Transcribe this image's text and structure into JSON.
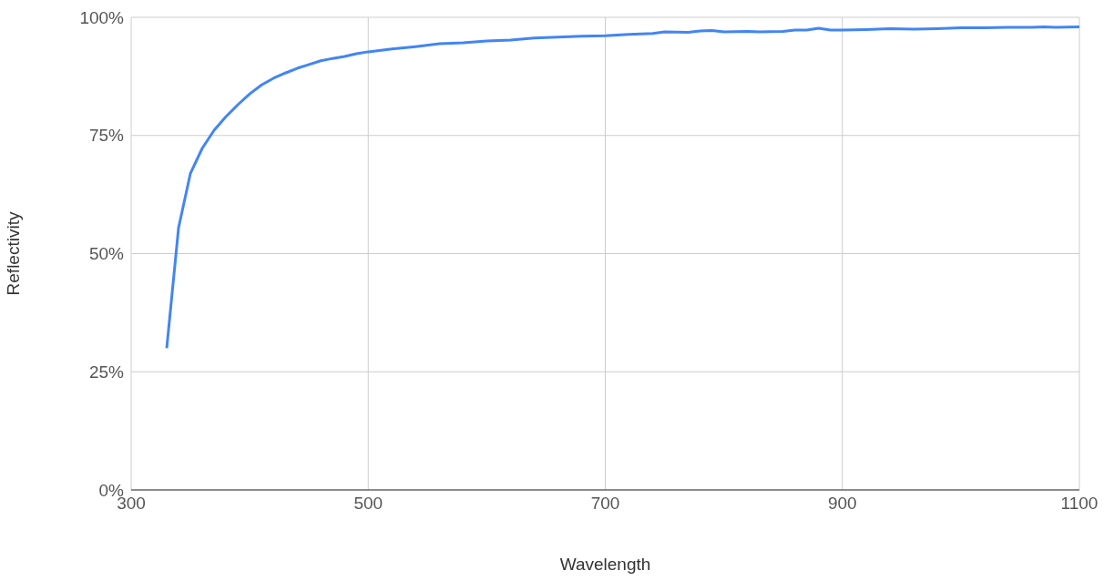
{
  "chart_data": {
    "type": "line",
    "xlabel": "Wavelength",
    "ylabel": "Reflectivity",
    "x": [
      330,
      340,
      350,
      360,
      370,
      380,
      390,
      400,
      410,
      420,
      430,
      440,
      450,
      460,
      470,
      480,
      490,
      500,
      520,
      540,
      560,
      580,
      600,
      620,
      640,
      660,
      680,
      700,
      720,
      740,
      750,
      770,
      780,
      790,
      800,
      820,
      830,
      850,
      860,
      870,
      880,
      890,
      900,
      920,
      940,
      960,
      980,
      1000,
      1020,
      1040,
      1060,
      1070,
      1080,
      1100
    ],
    "series": [
      {
        "color": "#4285f4",
        "values": [
          30.0,
          55.5,
          67,
          72.3,
          76.1,
          79,
          81.5,
          83.8,
          85.7,
          87.1,
          88.2,
          89.2,
          90,
          90.8,
          91.3,
          91.7,
          92.3,
          92.7,
          93.3,
          93.8,
          94.4,
          94.6,
          95,
          95.2,
          95.6,
          95.8,
          96,
          96.1,
          96.4,
          96.6,
          96.9,
          96.8,
          97.1,
          97.2,
          96.9,
          97,
          96.9,
          97,
          97.3,
          97.3,
          97.7,
          97.3,
          97.3,
          97.4,
          97.6,
          97.5,
          97.6,
          97.8,
          97.8,
          97.9,
          97.9,
          98,
          97.9,
          98
        ]
      }
    ],
    "xlim": [
      300,
      1100
    ],
    "xticks": [
      300,
      500,
      700,
      900,
      1100
    ],
    "ylim": [
      0,
      100
    ],
    "yticks": [
      {
        "value": 0,
        "label": "0%"
      },
      {
        "value": 25,
        "label": "25%"
      },
      {
        "value": 50,
        "label": "50%"
      },
      {
        "value": 75,
        "label": "75%"
      },
      {
        "value": 100,
        "label": "100%"
      }
    ],
    "grid": true,
    "marker": "none",
    "line_style": "solid",
    "legend": false
  }
}
